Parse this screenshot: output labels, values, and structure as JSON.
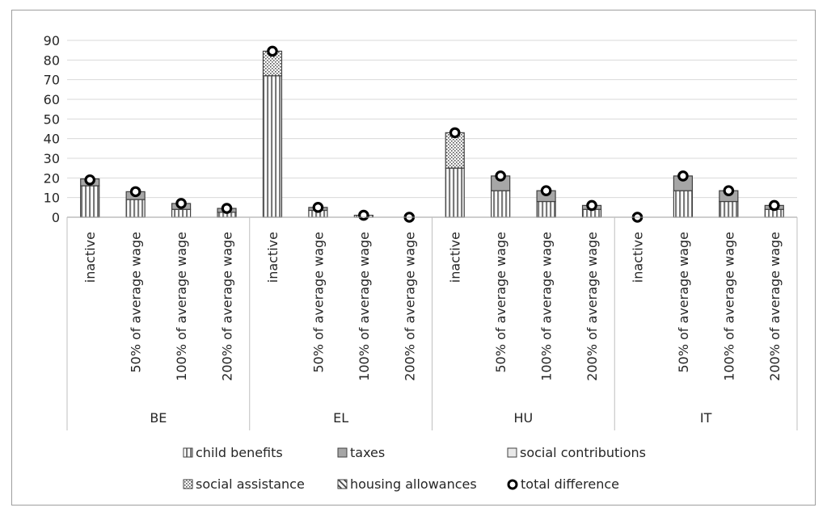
{
  "chart_data": {
    "type": "bar",
    "stacked": true,
    "title": "",
    "xlabel": "",
    "ylabel": "",
    "ylim": [
      0,
      90
    ],
    "yticks": [
      0,
      10,
      20,
      30,
      40,
      50,
      60,
      70,
      80,
      90
    ],
    "grid": true,
    "legend_position": "bottom",
    "groups": [
      {
        "label": "BE",
        "categories": [
          "inactive",
          "50% of average wage",
          "100% of average wage",
          "200% of average wage"
        ]
      },
      {
        "label": "EL",
        "categories": [
          "inactive",
          "50% of average wage",
          "100% of average wage",
          "200% of average wage"
        ]
      },
      {
        "label": "HU",
        "categories": [
          "inactive",
          "50% of average wage",
          "100% of average wage",
          "200% of average wage"
        ]
      },
      {
        "label": "IT",
        "categories": [
          "inactive",
          "50% of average wage",
          "100% of average wage",
          "200% of average wage"
        ]
      }
    ],
    "series": [
      {
        "name": "child benefits",
        "pattern": "vertical-stripes",
        "values": [
          16,
          9,
          4,
          2.5,
          72,
          3.5,
          1,
          0,
          25,
          13.5,
          8,
          4,
          0,
          13.5,
          8,
          4
        ]
      },
      {
        "name": "taxes",
        "pattern": "solid-gray",
        "values": [
          3.5,
          4,
          3,
          2,
          0,
          1.5,
          0,
          0,
          0,
          7.5,
          5.5,
          2,
          0,
          7.5,
          5.5,
          2
        ]
      },
      {
        "name": "social contributions",
        "pattern": "light-gray",
        "values": [
          0,
          0,
          0,
          0,
          0,
          0,
          0,
          0,
          0,
          0,
          0,
          0,
          0,
          0,
          0,
          0
        ]
      },
      {
        "name": "social assistance",
        "pattern": "dots",
        "values": [
          0,
          0,
          0,
          0,
          12.5,
          0,
          0,
          0,
          18,
          0,
          0,
          0,
          0,
          0,
          0,
          0
        ]
      },
      {
        "name": "housing allowances",
        "pattern": "diagonal-stripes",
        "values": [
          0,
          0,
          0,
          0,
          0,
          0,
          0,
          0,
          0,
          0,
          0,
          0,
          0,
          0,
          0,
          0
        ]
      }
    ],
    "markers": {
      "name": "total difference",
      "values": [
        19,
        13,
        7,
        4.5,
        84.5,
        5,
        1,
        0,
        43,
        21,
        13.5,
        6,
        0,
        21,
        13.5,
        6
      ]
    }
  }
}
